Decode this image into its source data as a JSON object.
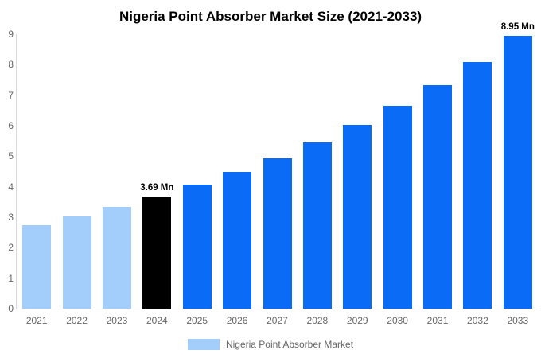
{
  "chart_data": {
    "type": "bar",
    "title": "Nigeria Point Absorber Market Size (2021-2033)",
    "categories": [
      "2021",
      "2022",
      "2023",
      "2024",
      "2025",
      "2026",
      "2027",
      "2028",
      "2029",
      "2030",
      "2031",
      "2032",
      "2033"
    ],
    "values": [
      2.73,
      3.02,
      3.33,
      3.69,
      4.06,
      4.48,
      4.94,
      5.45,
      6.02,
      6.64,
      7.33,
      8.09,
      8.95
    ],
    "unit": "Mn",
    "ylim": [
      0,
      9
    ],
    "yticks": [
      0,
      1,
      2,
      3,
      4,
      5,
      6,
      7,
      8,
      9
    ],
    "grid": false,
    "bar_styles": [
      "historical",
      "historical",
      "historical",
      "current",
      "forecast",
      "forecast",
      "forecast",
      "forecast",
      "forecast",
      "forecast",
      "forecast",
      "forecast",
      "forecast"
    ],
    "colors": {
      "historical": "#a3cdfb",
      "current": "#000000",
      "forecast": "#0a6cf6"
    },
    "axis_color": "#d9d9d9",
    "tick_label_color": "#666666",
    "annotations": [
      {
        "category": "2024",
        "label": "3.69 Mn"
      },
      {
        "category": "2033",
        "label": "8.95 Mn"
      }
    ],
    "legend": {
      "position": "bottom",
      "items": [
        {
          "label": "Nigeria Point Absorber Market",
          "swatch_color": "#a3cdfb"
        }
      ]
    }
  }
}
